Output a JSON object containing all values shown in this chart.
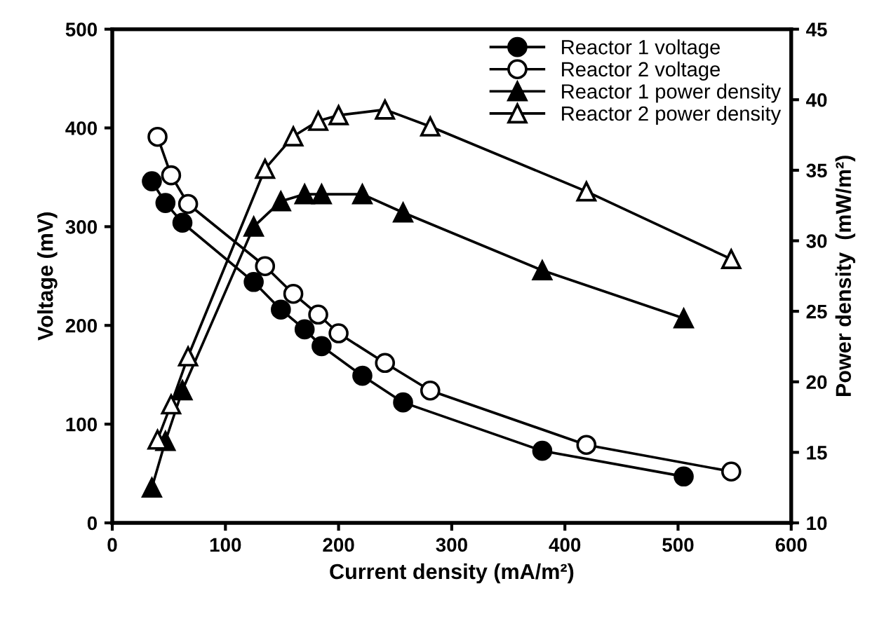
{
  "chart_data": {
    "type": "line",
    "xlabel": "Current density (mA/m²)",
    "ylabel": "Voltage (mV)",
    "y2label": "Power density  (mW/m²)",
    "xlim": [
      0,
      600
    ],
    "xticks": [
      0,
      100,
      200,
      300,
      400,
      500,
      600
    ],
    "ylim": [
      0,
      500
    ],
    "yticks": [
      0,
      100,
      200,
      300,
      400,
      500
    ],
    "y2lim": [
      10,
      45
    ],
    "y2ticks": [
      10,
      15,
      20,
      25,
      30,
      35,
      40,
      45
    ],
    "grid": false,
    "legend": "top right",
    "line_style": "solid",
    "series": [
      {
        "name": "Reactor 1 voltage",
        "color": "#000000",
        "marker": "circle",
        "x": [
          35,
          47,
          62,
          125,
          149,
          170,
          185,
          221,
          257,
          380,
          505
        ],
        "values": [
          346,
          324,
          304,
          244,
          216,
          196,
          179,
          149,
          122,
          73,
          47
        ]
      },
      {
        "name": "Reactor 2 voltage",
        "color": "#000000",
        "marker": "circle",
        "x": [
          40,
          52,
          67,
          135,
          160,
          182,
          200,
          241,
          281,
          419,
          547
        ],
        "values": [
          391,
          352,
          323,
          260,
          232,
          211,
          192,
          162,
          134,
          79,
          52
        ]
      },
      {
        "name": "Reactor 1 power density",
        "color": "#000000",
        "marker": "triangle",
        "axis": "y2",
        "x": [
          35,
          47,
          62,
          125,
          149,
          170,
          185,
          221,
          257,
          380,
          505
        ],
        "values": [
          12.5,
          15.8,
          19.4,
          31.0,
          32.8,
          33.3,
          33.3,
          33.3,
          32.0,
          27.9,
          24.5
        ]
      },
      {
        "name": "Reactor 2 power density",
        "color": "#000000",
        "marker": "triangle",
        "axis": "y2",
        "x": [
          40,
          52,
          67,
          135,
          160,
          182,
          200,
          241,
          281,
          419,
          547
        ],
        "values": [
          15.9,
          18.4,
          21.8,
          35.1,
          37.4,
          38.5,
          38.9,
          39.3,
          38.1,
          33.5,
          28.7
        ]
      }
    ]
  }
}
